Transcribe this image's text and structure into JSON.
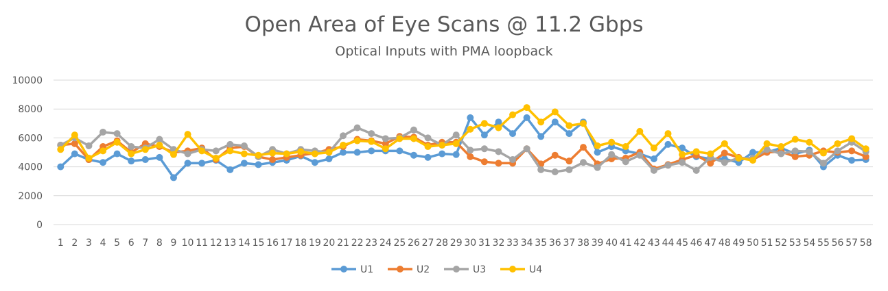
{
  "chart_data": {
    "type": "line",
    "title": "Open Area of Eye Scans @ 11.2 Gbps",
    "subtitle": "Optical Inputs with PMA loopback",
    "xlabel": "",
    "ylabel": "",
    "ylim": [
      0,
      10000
    ],
    "yticks": [
      0,
      2000,
      4000,
      6000,
      8000,
      10000
    ],
    "grid": true,
    "legend": "bottom",
    "categories": [
      "1",
      "2",
      "3",
      "4",
      "5",
      "6",
      "7",
      "8",
      "9",
      "10",
      "11",
      "12",
      "13",
      "14",
      "15",
      "16",
      "17",
      "18",
      "19",
      "20",
      "21",
      "22",
      "23",
      "24",
      "25",
      "26",
      "27",
      "28",
      "29",
      "30",
      "31",
      "32",
      "33",
      "34",
      "35",
      "36",
      "37",
      "38",
      "39",
      "40",
      "41",
      "42",
      "43",
      "44",
      "45",
      "46",
      "47",
      "48",
      "49",
      "50",
      "51",
      "52",
      "53",
      "54",
      "55",
      "56",
      "57",
      "58"
    ],
    "series": [
      {
        "name": "U1",
        "color": "#5B9BD5",
        "values": [
          4000,
          4900,
          4500,
          4300,
          4900,
          4400,
          4500,
          4650,
          3250,
          4250,
          4250,
          4450,
          3800,
          4250,
          4150,
          4300,
          4450,
          4750,
          4300,
          4550,
          5000,
          5000,
          5100,
          5100,
          5100,
          4800,
          4650,
          4900,
          4850,
          7400,
          6200,
          7100,
          6300,
          7400,
          6100,
          7100,
          6300,
          7100,
          5000,
          5400,
          5100,
          4900,
          4550,
          5550,
          5300,
          4700,
          4550,
          4550,
          4300,
          5000,
          5000,
          5300,
          4900,
          5150,
          4000,
          4800,
          4450,
          4500
        ]
      },
      {
        "name": "U2",
        "color": "#ED7D31",
        "values": [
          5500,
          5600,
          4500,
          5400,
          5800,
          5000,
          5600,
          5400,
          5000,
          5100,
          5300,
          4500,
          5300,
          5400,
          4700,
          4500,
          4650,
          4800,
          4950,
          5200,
          5400,
          5900,
          5800,
          5600,
          6100,
          6050,
          5500,
          5700,
          5700,
          4700,
          4350,
          4250,
          4250,
          5250,
          4200,
          4800,
          4400,
          5350,
          4200,
          4550,
          4600,
          5000,
          3850,
          4150,
          4500,
          4800,
          4250,
          4950,
          4650,
          4500,
          5000,
          5050,
          4700,
          4800,
          5100,
          5000,
          5100,
          4700
        ]
      },
      {
        "name": "U3",
        "color": "#A5A5A5",
        "values": [
          5500,
          6000,
          5450,
          6400,
          6300,
          5400,
          5300,
          5900,
          5200,
          4900,
          5200,
          5100,
          5550,
          5450,
          4700,
          5200,
          4900,
          5200,
          5100,
          5000,
          6150,
          6700,
          6300,
          5950,
          6000,
          6550,
          6000,
          5500,
          6200,
          5150,
          5250,
          5050,
          4500,
          5250,
          3800,
          3650,
          3800,
          4300,
          3950,
          4850,
          4350,
          4800,
          3750,
          4100,
          4300,
          3750,
          4650,
          4300,
          4600,
          4600,
          5200,
          4900,
          5100,
          5050,
          4250,
          5100,
          5700,
          5050
        ]
      },
      {
        "name": "U4",
        "color": "#FFC000",
        "values": [
          5200,
          6200,
          4600,
          5100,
          5700,
          4900,
          5200,
          5500,
          4850,
          6250,
          5100,
          4600,
          5100,
          4900,
          4800,
          4950,
          4900,
          5050,
          4900,
          5000,
          5500,
          5800,
          5750,
          5250,
          5950,
          5950,
          5400,
          5500,
          5600,
          6600,
          7000,
          6700,
          7600,
          8100,
          7100,
          7800,
          6850,
          7000,
          5450,
          5700,
          5400,
          6450,
          5300,
          6300,
          4850,
          5050,
          4900,
          5600,
          4600,
          4450,
          5600,
          5400,
          5900,
          5700,
          4950,
          5600,
          5950,
          5250
        ]
      }
    ]
  }
}
